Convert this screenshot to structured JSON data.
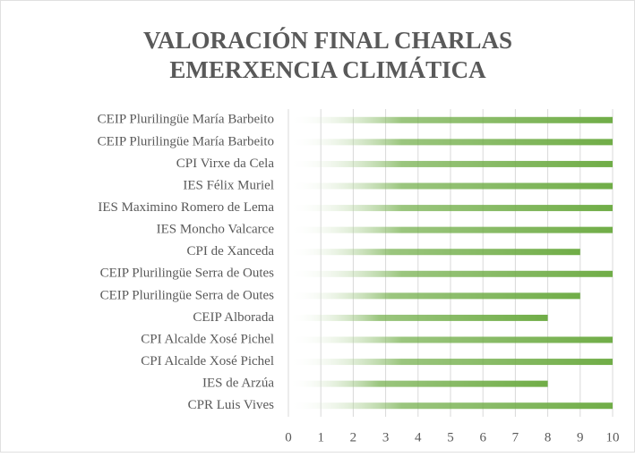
{
  "chart_data": {
    "type": "bar",
    "orientation": "horizontal",
    "title": [
      "VALORACIÓN FINAL CHARLAS",
      "EMERXENCIA CLIMÁTICA"
    ],
    "categories": [
      "CEIP Plurilingüe María Barbeito",
      "CEIP Plurilingüe María Barbeito",
      "CPI Virxe da Cela",
      "IES Félix Muriel",
      "IES Maximino Romero de Lema",
      "IES Moncho Valcarce",
      "CPI de Xanceda",
      "CEIP Plurilingüe Serra de Outes",
      "CEIP Plurilingüe Serra de Outes",
      "CEIP Alborada",
      "CPI Alcalde Xosé Pichel",
      "CPI Alcalde Xosé Pichel",
      "IES de Arzúa",
      "CPR Luis Vives"
    ],
    "values": [
      10,
      10,
      10,
      10,
      10,
      10,
      9,
      10,
      9,
      8,
      10,
      10,
      8,
      10
    ],
    "color": "#70ad47",
    "xlim": [
      0,
      10
    ],
    "xticks": [
      0,
      1,
      2,
      3,
      4,
      5,
      6,
      7,
      8,
      9,
      10
    ],
    "grid": true
  }
}
